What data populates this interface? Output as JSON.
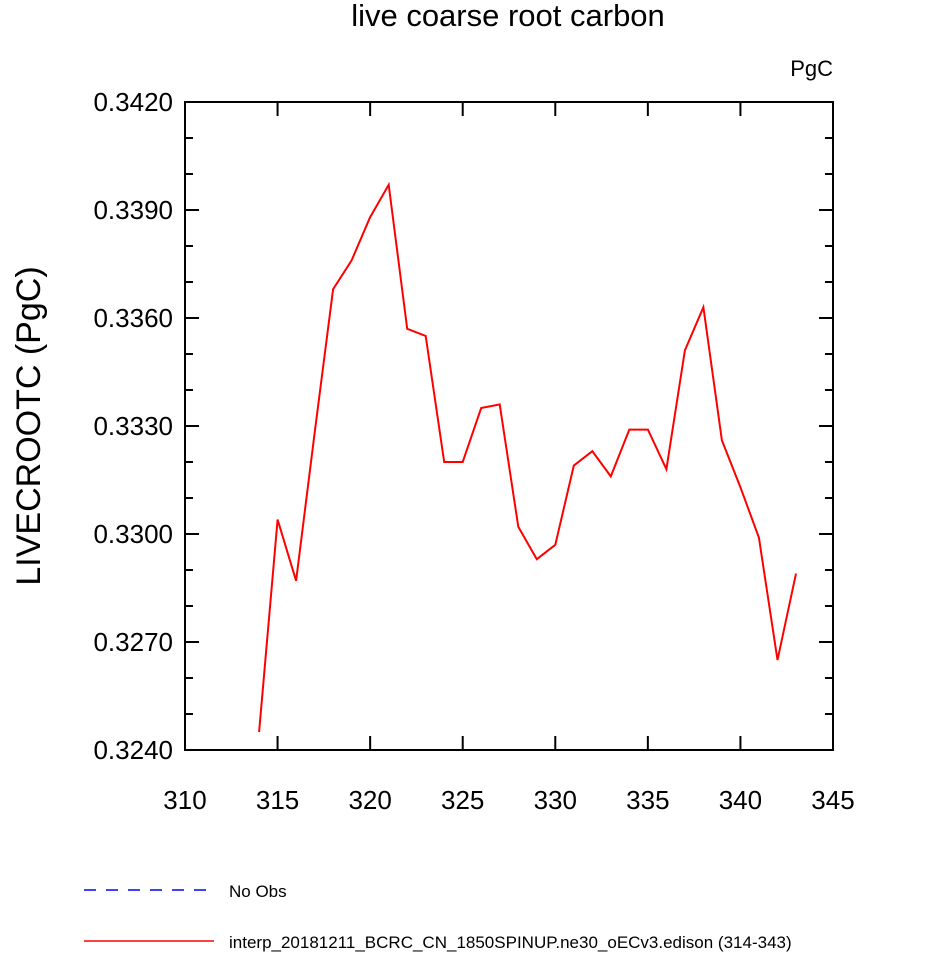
{
  "chart_data": {
    "type": "line",
    "title": "live coarse root carbon",
    "units_label": "PgC",
    "ylabel": "LIVECROOTC  (PgC)",
    "xlabel": "",
    "xlim": [
      310,
      345
    ],
    "ylim": [
      0.324,
      0.342
    ],
    "x_ticks": [
      "310",
      "315",
      "320",
      "325",
      "330",
      "335",
      "340",
      "345"
    ],
    "y_ticks": [
      "0.3240",
      "0.3270",
      "0.3300",
      "0.3330",
      "0.3360",
      "0.3390",
      "0.3420"
    ],
    "grid": false,
    "legend_position": "bottom-left",
    "series": [
      {
        "name": "No Obs",
        "color": "#0000ff",
        "dash": "dashed",
        "x": [],
        "values": []
      },
      {
        "name": "interp_20181211_BCRC_CN_1850SPINUP.ne30_oECv3.edison (314-343)",
        "color": "#ff0000",
        "dash": "solid",
        "x": [
          314,
          315,
          316,
          317,
          318,
          319,
          320,
          321,
          322,
          323,
          324,
          325,
          326,
          327,
          328,
          329,
          330,
          331,
          332,
          333,
          334,
          335,
          336,
          337,
          338,
          339,
          340,
          341,
          342,
          343
        ],
        "values": [
          0.3245,
          0.3304,
          0.3287,
          0.3328,
          0.3368,
          0.3376,
          0.3388,
          0.3397,
          0.3357,
          0.3355,
          0.332,
          0.332,
          0.3335,
          0.3336,
          0.3302,
          0.3293,
          0.3297,
          0.3319,
          0.3323,
          0.3316,
          0.3329,
          0.3329,
          0.3318,
          0.3351,
          0.3363,
          0.3326,
          0.3313,
          0.3299,
          0.3265,
          0.3289
        ]
      }
    ]
  }
}
